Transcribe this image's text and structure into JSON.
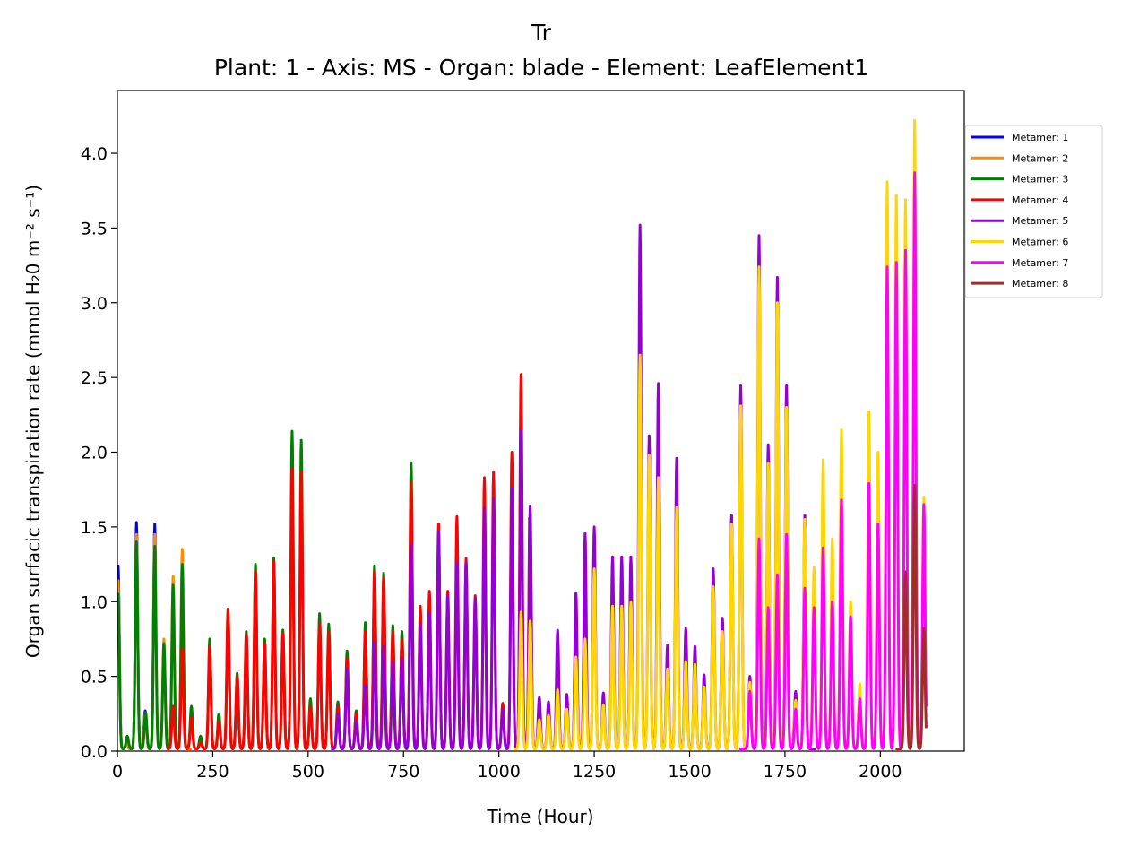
{
  "chart_data": {
    "type": "line",
    "title": "Tr",
    "subtitle": "Plant: 1 - Axis: MS - Organ: blade - Element: LeafElement1",
    "xlabel": "Time (Hour)",
    "ylabel": "Organ surfacic transpiration rate (mmol H₂0 m⁻² s⁻¹)",
    "xlim": [
      0,
      2220
    ],
    "ylim": [
      0,
      4.42
    ],
    "xticks": [
      0,
      250,
      500,
      750,
      1000,
      1250,
      1500,
      1750,
      2000
    ],
    "xtick_labels": [
      "0",
      "250",
      "500",
      "750",
      "1000",
      "1250",
      "1500",
      "1750",
      "2000"
    ],
    "yticks": [
      0,
      0.5,
      1.0,
      1.5,
      2.0,
      2.5,
      3.0,
      3.5,
      4.0
    ],
    "ytick_labels": [
      "0.0",
      "0.5",
      "1.0",
      "1.5",
      "2.0",
      "2.5",
      "3.0",
      "3.5",
      "4.0"
    ],
    "grid": false,
    "legend_position": "outside-right-top",
    "series": [
      {
        "name": "Metamer: 1",
        "color": "#0000ff",
        "start": 0,
        "end": 100,
        "peaks": [
          [
            2,
            1.24
          ],
          [
            24,
            0.05
          ],
          [
            50,
            1.53
          ],
          [
            73,
            0.27
          ],
          [
            98,
            1.52
          ]
        ]
      },
      {
        "name": "Metamer: 2",
        "color": "#ff8c00",
        "start": 0,
        "end": 195,
        "peaks": [
          [
            2,
            1.14
          ],
          [
            24,
            0.05
          ],
          [
            50,
            1.45
          ],
          [
            73,
            0.25
          ],
          [
            98,
            1.45
          ],
          [
            122,
            0.75
          ],
          [
            146,
            1.17
          ],
          [
            170,
            1.35
          ]
        ]
      },
      {
        "name": "Metamer: 3",
        "color": "#008000",
        "start": 0,
        "end": 780,
        "peaks": [
          [
            2,
            1.05
          ],
          [
            26,
            0.1
          ],
          [
            50,
            1.4
          ],
          [
            74,
            0.26
          ],
          [
            98,
            1.37
          ],
          [
            122,
            0.72
          ],
          [
            146,
            1.11
          ],
          [
            170,
            1.25
          ],
          [
            194,
            0.3
          ],
          [
            218,
            0.1
          ],
          [
            242,
            0.75
          ],
          [
            266,
            0.25
          ],
          [
            290,
            0.95
          ],
          [
            314,
            0.52
          ],
          [
            338,
            0.8
          ],
          [
            362,
            1.25
          ],
          [
            386,
            0.75
          ],
          [
            410,
            1.29
          ],
          [
            434,
            0.81
          ],
          [
            458,
            2.14
          ],
          [
            482,
            2.08
          ],
          [
            506,
            0.35
          ],
          [
            530,
            0.92
          ],
          [
            554,
            0.85
          ],
          [
            578,
            0.33
          ],
          [
            602,
            0.67
          ],
          [
            626,
            0.27
          ],
          [
            650,
            0.86
          ],
          [
            674,
            1.24
          ],
          [
            698,
            1.19
          ],
          [
            722,
            0.84
          ],
          [
            746,
            0.8
          ],
          [
            770,
            1.93
          ]
        ]
      },
      {
        "name": "Metamer: 4",
        "color": "#ff0000",
        "start": 130,
        "end": 1080,
        "peaks": [
          [
            146,
            0.3
          ],
          [
            170,
            0.68
          ],
          [
            194,
            0.22
          ],
          [
            218,
            0.06
          ],
          [
            242,
            0.7
          ],
          [
            266,
            0.2
          ],
          [
            290,
            0.95
          ],
          [
            314,
            0.5
          ],
          [
            338,
            0.78
          ],
          [
            362,
            1.2
          ],
          [
            386,
            0.72
          ],
          [
            410,
            1.27
          ],
          [
            434,
            0.79
          ],
          [
            458,
            1.89
          ],
          [
            482,
            1.87
          ],
          [
            506,
            0.3
          ],
          [
            530,
            0.86
          ],
          [
            554,
            0.8
          ],
          [
            578,
            0.3
          ],
          [
            602,
            0.62
          ],
          [
            626,
            0.25
          ],
          [
            650,
            0.8
          ],
          [
            674,
            1.2
          ],
          [
            698,
            1.16
          ],
          [
            722,
            0.8
          ],
          [
            746,
            0.75
          ],
          [
            770,
            1.8
          ],
          [
            794,
            0.97
          ],
          [
            818,
            1.07
          ],
          [
            842,
            1.52
          ],
          [
            866,
            1.07
          ],
          [
            890,
            1.57
          ],
          [
            914,
            1.29
          ],
          [
            938,
            1.04
          ],
          [
            962,
            1.83
          ],
          [
            986,
            1.87
          ],
          [
            1010,
            0.32
          ],
          [
            1034,
            2.0
          ],
          [
            1058,
            2.52
          ],
          [
            1082,
            1.9
          ]
        ]
      },
      {
        "name": "Metamer: 5",
        "color": "#9400d3",
        "start": 560,
        "end": 1830,
        "peaks": [
          [
            578,
            0.25
          ],
          [
            602,
            0.55
          ],
          [
            626,
            0.2
          ],
          [
            650,
            0.44
          ],
          [
            674,
            0.73
          ],
          [
            698,
            0.7
          ],
          [
            722,
            0.6
          ],
          [
            746,
            0.62
          ],
          [
            770,
            1.39
          ],
          [
            794,
            0.85
          ],
          [
            818,
            0.92
          ],
          [
            842,
            1.47
          ],
          [
            866,
            1.04
          ],
          [
            890,
            1.26
          ],
          [
            914,
            1.26
          ],
          [
            938,
            1.02
          ],
          [
            962,
            1.63
          ],
          [
            986,
            1.69
          ],
          [
            1010,
            0.28
          ],
          [
            1034,
            1.76
          ],
          [
            1058,
            2.14
          ],
          [
            1082,
            1.64
          ],
          [
            1106,
            0.36
          ],
          [
            1130,
            0.33
          ],
          [
            1154,
            0.81
          ],
          [
            1178,
            0.38
          ],
          [
            1202,
            1.06
          ],
          [
            1226,
            1.46
          ],
          [
            1250,
            1.5
          ],
          [
            1274,
            0.39
          ],
          [
            1298,
            1.3
          ],
          [
            1322,
            1.3
          ],
          [
            1346,
            1.3
          ],
          [
            1370,
            3.52
          ],
          [
            1394,
            2.11
          ],
          [
            1418,
            2.46
          ],
          [
            1442,
            0.71
          ],
          [
            1466,
            1.96
          ],
          [
            1490,
            0.82
          ],
          [
            1514,
            0.7
          ],
          [
            1538,
            0.51
          ],
          [
            1562,
            1.22
          ],
          [
            1586,
            0.89
          ],
          [
            1610,
            1.58
          ],
          [
            1634,
            2.45
          ],
          [
            1658,
            0.5
          ],
          [
            1682,
            3.45
          ],
          [
            1706,
            2.05
          ],
          [
            1730,
            3.17
          ],
          [
            1754,
            2.45
          ],
          [
            1778,
            0.4
          ],
          [
            1802,
            1.58
          ]
        ]
      },
      {
        "name": "Metamer: 6",
        "color": "#ffd700",
        "start": 1040,
        "end": 2120,
        "peaks": [
          [
            1058,
            0.93
          ],
          [
            1082,
            0.87
          ],
          [
            1106,
            0.21
          ],
          [
            1130,
            0.24
          ],
          [
            1154,
            0.41
          ],
          [
            1178,
            0.28
          ],
          [
            1202,
            0.63
          ],
          [
            1226,
            0.75
          ],
          [
            1250,
            1.22
          ],
          [
            1274,
            0.31
          ],
          [
            1298,
            0.97
          ],
          [
            1322,
            0.97
          ],
          [
            1346,
            1.0
          ],
          [
            1370,
            2.65
          ],
          [
            1394,
            1.98
          ],
          [
            1418,
            1.83
          ],
          [
            1442,
            0.55
          ],
          [
            1466,
            1.63
          ],
          [
            1490,
            0.6
          ],
          [
            1514,
            0.58
          ],
          [
            1538,
            0.43
          ],
          [
            1562,
            1.1
          ],
          [
            1586,
            0.8
          ],
          [
            1610,
            1.52
          ],
          [
            1634,
            2.31
          ],
          [
            1658,
            0.46
          ],
          [
            1682,
            3.24
          ],
          [
            1706,
            1.93
          ],
          [
            1730,
            3.0
          ],
          [
            1754,
            2.3
          ],
          [
            1778,
            0.34
          ],
          [
            1802,
            1.55
          ],
          [
            1826,
            1.23
          ],
          [
            1850,
            1.95
          ],
          [
            1874,
            1.42
          ],
          [
            1898,
            2.15
          ],
          [
            1922,
            1.0
          ],
          [
            1946,
            0.45
          ],
          [
            1970,
            2.27
          ],
          [
            1994,
            2.0
          ],
          [
            2018,
            3.81
          ],
          [
            2042,
            3.72
          ],
          [
            2066,
            3.69
          ],
          [
            2090,
            4.22
          ],
          [
            2114,
            1.7
          ]
        ]
      },
      {
        "name": "Metamer: 7",
        "color": "#ff00ff",
        "start": 1630,
        "end": 2120,
        "peaks": [
          [
            1658,
            0.4
          ],
          [
            1682,
            1.42
          ],
          [
            1706,
            0.96
          ],
          [
            1730,
            1.18
          ],
          [
            1754,
            1.45
          ],
          [
            1778,
            0.28
          ],
          [
            1802,
            1.09
          ],
          [
            1826,
            0.96
          ],
          [
            1850,
            1.36
          ],
          [
            1874,
            1.0
          ],
          [
            1898,
            1.68
          ],
          [
            1922,
            0.9
          ],
          [
            1946,
            0.35
          ],
          [
            1970,
            1.79
          ],
          [
            1994,
            1.52
          ],
          [
            2018,
            3.24
          ],
          [
            2042,
            3.27
          ],
          [
            2066,
            3.35
          ],
          [
            2090,
            3.87
          ],
          [
            2114,
            1.65
          ]
        ]
      },
      {
        "name": "Metamer: 8",
        "color": "#a52a2a",
        "start": 2040,
        "end": 2120,
        "peaks": [
          [
            2066,
            1.2
          ],
          [
            2090,
            1.78
          ],
          [
            2114,
            0.82
          ]
        ]
      }
    ]
  }
}
